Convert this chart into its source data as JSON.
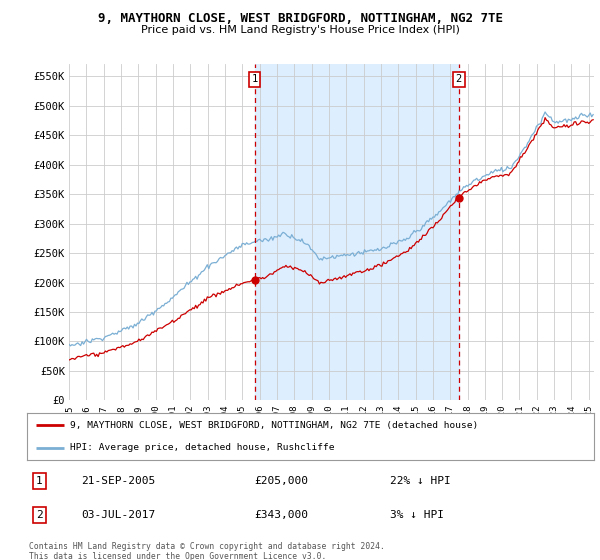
{
  "title_line1": "9, MAYTHORN CLOSE, WEST BRIDGFORD, NOTTINGHAM, NG2 7TE",
  "title_line2": "Price paid vs. HM Land Registry's House Price Index (HPI)",
  "ylim": [
    0,
    570000
  ],
  "yticks": [
    0,
    50000,
    100000,
    150000,
    200000,
    250000,
    300000,
    350000,
    400000,
    450000,
    500000,
    550000
  ],
  "ytick_labels": [
    "£0",
    "£50K",
    "£100K",
    "£150K",
    "£200K",
    "£250K",
    "£300K",
    "£350K",
    "£400K",
    "£450K",
    "£500K",
    "£550K"
  ],
  "hpi_color": "#7bafd4",
  "price_color": "#cc0000",
  "shade_color": "#ddeeff",
  "marker1_year": 2005.72,
  "marker1_price": 205000,
  "marker1_label": "21-SEP-2005",
  "marker1_amount": "£205,000",
  "marker1_pct": "22% ↓ HPI",
  "marker2_year": 2017.5,
  "marker2_price": 343000,
  "marker2_label": "03-JUL-2017",
  "marker2_amount": "£343,000",
  "marker2_pct": "3% ↓ HPI",
  "legend_line1": "9, MAYTHORN CLOSE, WEST BRIDGFORD, NOTTINGHAM, NG2 7TE (detached house)",
  "legend_line2": "HPI: Average price, detached house, Rushcliffe",
  "footnote": "Contains HM Land Registry data © Crown copyright and database right 2024.\nThis data is licensed under the Open Government Licence v3.0.",
  "background_color": "#ffffff",
  "grid_color": "#cccccc",
  "xlim_start": 1995,
  "xlim_end": 2025.3
}
